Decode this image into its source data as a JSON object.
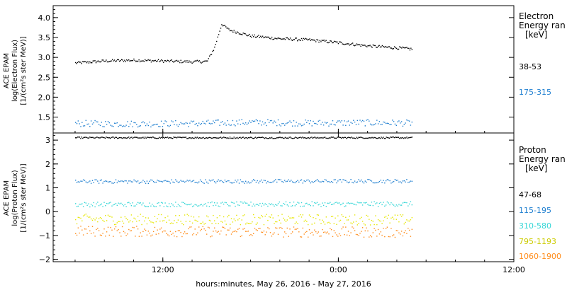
{
  "chart_data": [
    {
      "type": "scatter",
      "ylabel": [
        "ACE EPAM",
        "log(Electron Flux)",
        "[1/(cm²s ster MeV)]"
      ],
      "ylim": [
        1.1,
        4.3
      ],
      "yticks": [
        1.5,
        2.0,
        2.5,
        3.0,
        3.5,
        4.0
      ],
      "ytick_labels": [
        "1.5",
        "2.0",
        "2.5",
        "3.0",
        "3.5",
        "4.0"
      ],
      "legend": {
        "title": [
          "Electron",
          "Energy ran"
        ],
        "unit": "[keV]",
        "entries": [
          "38-53",
          "175-315"
        ]
      },
      "series": [
        {
          "name": "38-53",
          "color": "#000000",
          "x_hours": [
            -6,
            -4,
            -2,
            0,
            2,
            3,
            3.5,
            4,
            4.5,
            6,
            8,
            10,
            12,
            14,
            16,
            17
          ],
          "values": [
            2.87,
            2.92,
            2.94,
            2.92,
            2.9,
            2.91,
            3.25,
            3.85,
            3.7,
            3.55,
            3.48,
            3.45,
            3.38,
            3.3,
            3.25,
            3.22
          ]
        },
        {
          "name": "175-315",
          "color": "#1f7fd0",
          "x_hours": [
            -6,
            -2,
            2,
            6,
            10,
            14,
            17
          ],
          "values": [
            1.35,
            1.34,
            1.35,
            1.38,
            1.36,
            1.37,
            1.36
          ]
        }
      ]
    },
    {
      "type": "scatter",
      "ylabel": [
        "ACE EPAM",
        "log(Proton Flux)",
        "[1/(cm²s ster MeV)]"
      ],
      "ylim": [
        -2.1,
        3.3
      ],
      "yticks": [
        -2,
        -1,
        0,
        1,
        2,
        3
      ],
      "ytick_labels": [
        "−2",
        "−1",
        "0",
        "1",
        "2",
        "3"
      ],
      "legend": {
        "title": [
          "Proton",
          "Energy ran"
        ],
        "unit": "[keV]",
        "entries": [
          "47-68",
          "115-195",
          "310-580",
          "795-1193",
          "1060-1900"
        ]
      },
      "series": [
        {
          "name": "47-68",
          "color": "#000000",
          "x_hours": [
            -6,
            17
          ],
          "values": [
            3.12,
            3.12
          ]
        },
        {
          "name": "115-195",
          "color": "#1f7fd0",
          "x_hours": [
            -6,
            17
          ],
          "values": [
            1.28,
            1.3
          ]
        },
        {
          "name": "310-580",
          "color": "#33d6d6",
          "x_hours": [
            -6,
            17
          ],
          "values": [
            0.32,
            0.34
          ]
        },
        {
          "name": "795-1193",
          "color": "#e6e600",
          "x_hours": [
            -6,
            17
          ],
          "values": [
            -0.3,
            -0.32
          ]
        },
        {
          "name": "1060-1900",
          "color": "#ff8c1a",
          "x_hours": [
            -6,
            17
          ],
          "values": [
            -0.8,
            -0.85
          ]
        }
      ]
    }
  ],
  "x_axis": {
    "xlim_hours": [
      -7.5,
      24
    ],
    "ticks_hours": [
      0,
      12,
      24
    ],
    "tick_labels": [
      "12:00",
      "0:00",
      "12:00"
    ],
    "label": "hours:minutes, May 26, 2016 - May 27, 2016"
  }
}
